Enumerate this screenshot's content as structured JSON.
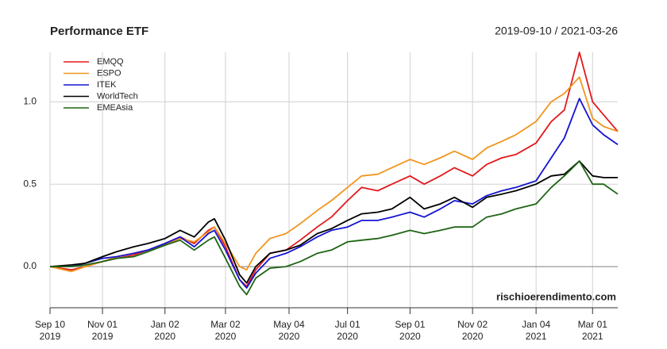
{
  "chart_data": {
    "type": "line",
    "title": "Performance ETF",
    "subtitle": "2019-09-10 / 2021-03-26",
    "annotation": "rischioerendimento.com",
    "x": [
      "2019-09-10",
      "2019-10-01",
      "2019-10-15",
      "2019-11-01",
      "2019-11-15",
      "2019-12-02",
      "2019-12-16",
      "2020-01-02",
      "2020-01-17",
      "2020-01-31",
      "2020-02-14",
      "2020-02-20",
      "2020-03-02",
      "2020-03-16",
      "2020-03-23",
      "2020-04-01",
      "2020-04-15",
      "2020-05-01",
      "2020-05-15",
      "2020-06-01",
      "2020-06-15",
      "2020-07-01",
      "2020-07-15",
      "2020-07-31",
      "2020-08-14",
      "2020-09-01",
      "2020-09-15",
      "2020-10-01",
      "2020-10-15",
      "2020-11-02",
      "2020-11-16",
      "2020-12-01",
      "2020-12-15",
      "2021-01-04",
      "2021-01-19",
      "2021-02-01",
      "2021-02-16",
      "2021-03-01",
      "2021-03-12",
      "2021-03-26"
    ],
    "series": [
      {
        "name": "EMQQ",
        "color": "#e3191c",
        "values": [
          0,
          -0.02,
          0.0,
          0.03,
          0.05,
          0.07,
          0.1,
          0.14,
          0.18,
          0.14,
          0.22,
          0.24,
          0.12,
          -0.08,
          -0.12,
          -0.02,
          0.08,
          0.1,
          0.16,
          0.24,
          0.3,
          0.4,
          0.48,
          0.46,
          0.5,
          0.55,
          0.5,
          0.55,
          0.6,
          0.55,
          0.62,
          0.66,
          0.68,
          0.75,
          0.88,
          0.95,
          1.3,
          1.0,
          0.92,
          0.82
        ]
      },
      {
        "name": "ESPO",
        "color": "#f0961e",
        "values": [
          0,
          -0.03,
          0.0,
          0.03,
          0.06,
          0.08,
          0.1,
          0.13,
          0.17,
          0.15,
          0.21,
          0.24,
          0.14,
          0.0,
          -0.02,
          0.08,
          0.17,
          0.2,
          0.26,
          0.34,
          0.4,
          0.48,
          0.55,
          0.56,
          0.6,
          0.65,
          0.62,
          0.66,
          0.7,
          0.65,
          0.72,
          0.76,
          0.8,
          0.88,
          1.0,
          1.05,
          1.15,
          0.9,
          0.85,
          0.82
        ]
      },
      {
        "name": "ITEK",
        "color": "#1414d2",
        "values": [
          0,
          0.0,
          0.02,
          0.05,
          0.06,
          0.08,
          0.1,
          0.14,
          0.18,
          0.12,
          0.2,
          0.22,
          0.1,
          -0.08,
          -0.13,
          -0.04,
          0.05,
          0.08,
          0.12,
          0.18,
          0.22,
          0.24,
          0.28,
          0.28,
          0.3,
          0.33,
          0.3,
          0.35,
          0.4,
          0.38,
          0.43,
          0.46,
          0.48,
          0.52,
          0.66,
          0.78,
          1.02,
          0.86,
          0.8,
          0.74
        ]
      },
      {
        "name": "WorldTech",
        "color": "#000000",
        "values": [
          0,
          0.01,
          0.02,
          0.06,
          0.09,
          0.12,
          0.14,
          0.17,
          0.22,
          0.18,
          0.27,
          0.29,
          0.16,
          -0.05,
          -0.1,
          0.0,
          0.08,
          0.1,
          0.13,
          0.2,
          0.23,
          0.28,
          0.32,
          0.33,
          0.35,
          0.42,
          0.35,
          0.38,
          0.42,
          0.36,
          0.42,
          0.44,
          0.46,
          0.5,
          0.55,
          0.56,
          0.64,
          0.55,
          0.54,
          0.54
        ]
      },
      {
        "name": "EMEAsia",
        "color": "#1e6414",
        "values": [
          0,
          0.0,
          0.01,
          0.03,
          0.05,
          0.06,
          0.09,
          0.13,
          0.16,
          0.1,
          0.16,
          0.18,
          0.05,
          -0.12,
          -0.17,
          -0.07,
          -0.01,
          0.0,
          0.03,
          0.08,
          0.1,
          0.15,
          0.16,
          0.17,
          0.19,
          0.22,
          0.2,
          0.22,
          0.24,
          0.24,
          0.3,
          0.32,
          0.35,
          0.38,
          0.48,
          0.55,
          0.64,
          0.5,
          0.5,
          0.44
        ]
      }
    ],
    "xlim": [
      "2019-09-10",
      "2021-03-26"
    ],
    "xticks": [
      {
        "value": "2019-09-10",
        "label": "Sep 10\n2019"
      },
      {
        "value": "2019-11-01",
        "label": "Nov 01\n2019"
      },
      {
        "value": "2020-01-02",
        "label": "Jan 02\n2020"
      },
      {
        "value": "2020-03-02",
        "label": "Mar 02\n2020"
      },
      {
        "value": "2020-05-04",
        "label": "May 04\n2020"
      },
      {
        "value": "2020-07-01",
        "label": "Jul 01\n2020"
      },
      {
        "value": "2020-09-01",
        "label": "Sep 01\n2020"
      },
      {
        "value": "2020-11-02",
        "label": "Nov 02\n2020"
      },
      {
        "value": "2021-01-04",
        "label": "Jan 04\n2021"
      },
      {
        "value": "2021-03-01",
        "label": "Mar 01\n2021"
      }
    ],
    "ylim": [
      -0.25,
      1.3
    ],
    "yticks": [
      {
        "value": 0,
        "label": "0.0"
      },
      0.5,
      {
        "value": 1,
        "label": "1.0"
      }
    ],
    "grid": true,
    "legend": "top-left"
  }
}
